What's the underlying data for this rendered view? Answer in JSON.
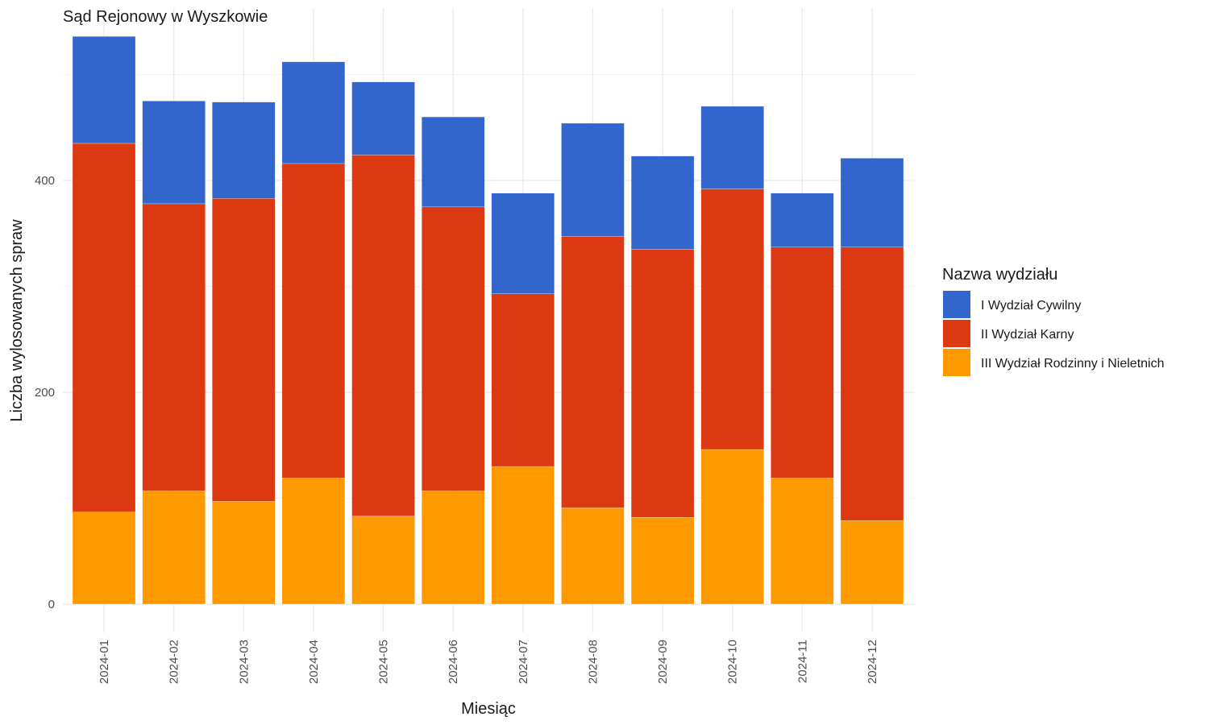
{
  "chart_data": {
    "type": "bar",
    "stacked": true,
    "title": "Sąd Rejonowy w Wyszkowie",
    "xlabel": "Miesiąc",
    "ylabel": "Liczba wylosowanych spraw",
    "ylim": [
      0,
      540
    ],
    "yticks": [
      0,
      200,
      400
    ],
    "grid": true,
    "legend_title": "Nazwa wydziału",
    "legend_position": "right",
    "categories": [
      "2024-01",
      "2024-02",
      "2024-03",
      "2024-04",
      "2024-05",
      "2024-06",
      "2024-07",
      "2024-08",
      "2024-09",
      "2024-10",
      "2024-11",
      "2024-12"
    ],
    "series": [
      {
        "name": "III Wydział Rodzinny i Nieletnich",
        "color": "#FF9900",
        "values": [
          87,
          107,
          97,
          119,
          83,
          107,
          130,
          91,
          82,
          146,
          119,
          79
        ]
      },
      {
        "name": "II Wydział Karny",
        "color": "#DC3912",
        "values": [
          348,
          271,
          286,
          297,
          341,
          268,
          163,
          256,
          253,
          246,
          218,
          258
        ]
      },
      {
        "name": "I Wydział Cywilny",
        "color": "#3366CC",
        "values": [
          101,
          97,
          91,
          96,
          69,
          85,
          95,
          107,
          88,
          78,
          51,
          84
        ]
      }
    ],
    "legend_order": [
      "I Wydział Cywilny",
      "II Wydział Karny",
      "III Wydział Rodzinny i Nieletnich"
    ]
  }
}
